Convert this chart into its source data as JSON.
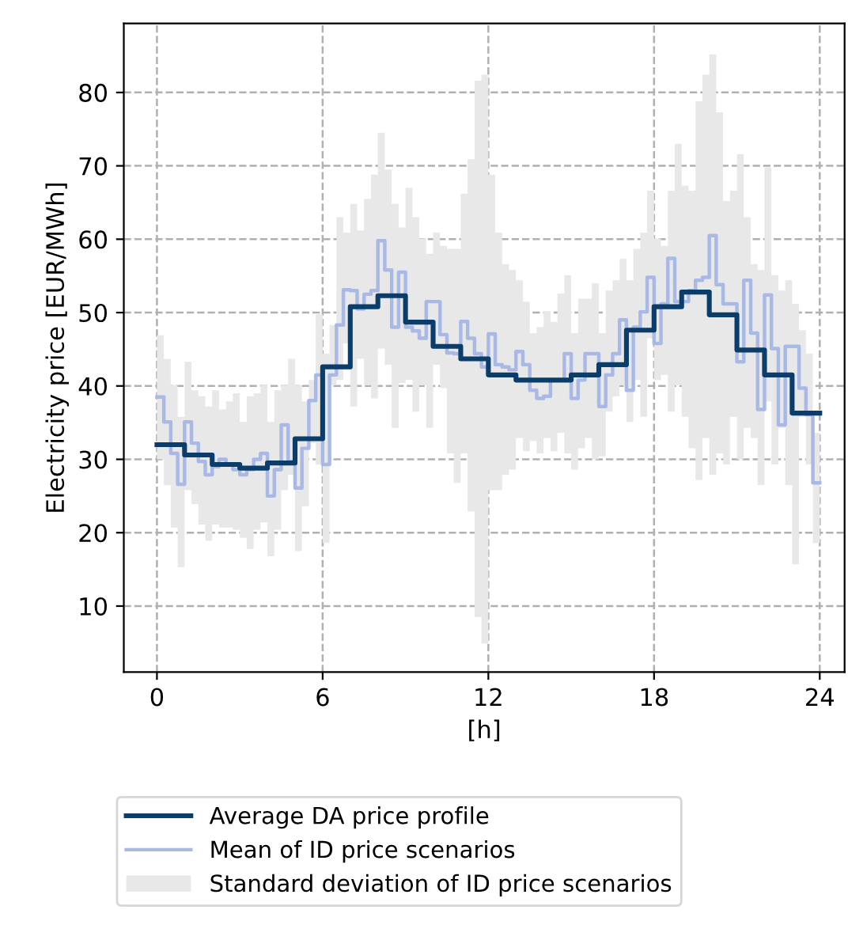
{
  "chart_data": {
    "type": "step",
    "xlabel": "[h]",
    "ylabel": "Electricity price [EUR/MWh]",
    "xlim": [
      -1.2,
      24.9
    ],
    "ylim": [
      1,
      89.4
    ],
    "xticks": [
      0,
      6,
      12,
      18,
      24
    ],
    "yticks": [
      10,
      20,
      30,
      40,
      50,
      60,
      70,
      80
    ],
    "grid": true,
    "legend": "bottom",
    "series": [
      {
        "name": "Average DA price profile",
        "color": "#0b3d6b",
        "x": [
          0,
          1,
          2,
          3,
          4,
          5,
          6,
          7,
          8,
          9,
          10,
          11,
          12,
          13,
          14,
          15,
          16,
          17,
          18,
          19,
          20,
          21,
          22,
          23,
          24
        ],
        "values": [
          32.0,
          30.6,
          29.3,
          28.8,
          29.5,
          32.8,
          42.6,
          50.8,
          52.3,
          48.7,
          45.4,
          43.7,
          41.5,
          40.8,
          40.8,
          41.5,
          42.9,
          47.6,
          50.8,
          52.8,
          49.7,
          44.9,
          41.5,
          36.3,
          36.3
        ]
      },
      {
        "name": "Mean of ID price scenarios",
        "color": "#a9b9e6",
        "x": [
          0,
          0.25,
          0.5,
          0.75,
          1,
          1.25,
          1.5,
          1.75,
          2,
          2.25,
          2.5,
          2.75,
          3,
          3.25,
          3.5,
          3.75,
          4,
          4.25,
          4.5,
          4.75,
          5,
          5.25,
          5.5,
          5.75,
          6,
          6.25,
          6.5,
          6.75,
          7,
          7.25,
          7.5,
          7.75,
          8,
          8.25,
          8.5,
          8.75,
          9,
          9.25,
          9.5,
          9.75,
          10,
          10.25,
          10.5,
          10.75,
          11,
          11.25,
          11.5,
          11.75,
          12,
          12.25,
          12.5,
          12.75,
          13,
          13.25,
          13.5,
          13.75,
          14,
          14.25,
          14.5,
          14.75,
          15,
          15.25,
          15.5,
          15.75,
          16,
          16.25,
          16.5,
          16.75,
          17,
          17.25,
          17.5,
          17.75,
          18,
          18.25,
          18.5,
          18.75,
          19,
          19.25,
          19.5,
          19.75,
          20,
          20.25,
          20.5,
          20.75,
          21,
          21.25,
          21.5,
          21.75,
          22,
          22.25,
          22.5,
          22.75,
          23,
          23.25,
          23.5,
          23.75,
          24
        ],
        "values": [
          38.5,
          35.1,
          30.8,
          26.6,
          35.1,
          32.2,
          29.7,
          27.9,
          29.0,
          30.0,
          29.3,
          28.6,
          27.9,
          28.6,
          30.0,
          30.8,
          25.0,
          28.6,
          34.7,
          29.7,
          26.1,
          31.5,
          38.0,
          41.5,
          29.3,
          41.5,
          48.3,
          53.1,
          53.0,
          50.5,
          52.5,
          53.0,
          59.8,
          55.8,
          48.0,
          55.5,
          48.0,
          47.5,
          46.5,
          51.5,
          51.5,
          47.0,
          44.5,
          44.4,
          48.8,
          46.5,
          44.4,
          42.6,
          47.1,
          42.9,
          42.6,
          42.2,
          44.7,
          42.9,
          39.4,
          38.3,
          38.6,
          40.8,
          40.8,
          44.4,
          38.3,
          40.8,
          44.4,
          44.4,
          37.2,
          41.5,
          44.4,
          49.0,
          39.4,
          48.0,
          50.1,
          54.8,
          45.8,
          51.2,
          57.4,
          51.5,
          51.5,
          53.0,
          54.4,
          54.8,
          60.5,
          53.8,
          51.2,
          51.2,
          43.3,
          54.4,
          47.2,
          36.8,
          52.4,
          45.1,
          34.7,
          45.4,
          45.4,
          39.7,
          36.1,
          26.8,
          26.8
        ],
        "lower": [
          30.0,
          26.5,
          20.7,
          15.3,
          25.8,
          23.9,
          21.1,
          18.9,
          21.1,
          20.7,
          20.7,
          20.4,
          19.3,
          17.8,
          20.4,
          21.4,
          16.8,
          20.4,
          25.8,
          27.9,
          17.5,
          23.6,
          32.2,
          29.3,
          18.6,
          40.1,
          40.8,
          45.8,
          37.2,
          43.7,
          40.1,
          38.3,
          45.1,
          42.9,
          34.3,
          40.4,
          40.8,
          36.5,
          40.1,
          34.3,
          42.9,
          39.7,
          30.8,
          26.8,
          30.8,
          22.9,
          8.5,
          4.9,
          25.8,
          25.8,
          27.9,
          28.6,
          32.9,
          31.1,
          32.5,
          30.8,
          32.9,
          31.1,
          33.6,
          30.8,
          28.6,
          31.5,
          32.9,
          30.0,
          30.4,
          36.5,
          38.6,
          40.1,
          35.1,
          40.8,
          35.8,
          46.5,
          40.8,
          41.5,
          36.5,
          40.1,
          35.8,
          31.5,
          27.2,
          32.9,
          27.9,
          30.8,
          29.3,
          35.8,
          30.0,
          34.3,
          32.9,
          26.5,
          37.9,
          29.3,
          34.3,
          26.5,
          15.7,
          35.8,
          29.3,
          18.6,
          18.6
        ],
        "upper": [
          46.9,
          43.7,
          40.1,
          35.8,
          43.3,
          39.4,
          38.6,
          37.2,
          39.4,
          36.8,
          37.9,
          39.0,
          35.1,
          38.6,
          39.0,
          40.1,
          35.1,
          39.4,
          40.1,
          43.7,
          40.1,
          37.9,
          40.8,
          49.8,
          44.4,
          48.3,
          63.0,
          60.9,
          64.8,
          61.2,
          65.5,
          68.8,
          74.5,
          69.5,
          64.8,
          61.6,
          67.0,
          63.0,
          60.1,
          58.0,
          60.9,
          59.1,
          58.7,
          58.7,
          66.2,
          70.9,
          81.6,
          82.4,
          68.8,
          60.9,
          56.6,
          55.8,
          54.4,
          51.5,
          47.2,
          48.0,
          50.1,
          48.7,
          52.6,
          55.1,
          47.2,
          51.9,
          51.9,
          54.0,
          47.2,
          53.0,
          54.4,
          57.3,
          54.4,
          58.7,
          60.9,
          66.6,
          60.1,
          59.1,
          66.6,
          73.0,
          67.3,
          66.6,
          78.8,
          82.4,
          85.2,
          77.3,
          65.2,
          66.6,
          71.6,
          63.0,
          56.6,
          55.8,
          69.8,
          55.1,
          53.0,
          54.4,
          51.2,
          47.6,
          44.4,
          33.6,
          33.6
        ]
      },
      {
        "name": "Standard deviation of ID price scenarios",
        "type": "area",
        "color": "#e8e8e8"
      }
    ]
  }
}
